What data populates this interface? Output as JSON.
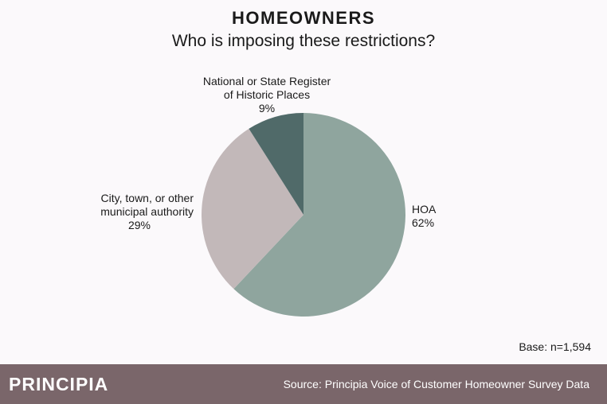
{
  "header": {
    "title": "HOMEOWNERS",
    "subtitle": "Who is imposing these restrictions?"
  },
  "chart_data": {
    "type": "pie",
    "title": "HOMEOWNERS",
    "subtitle": "Who is imposing these restrictions?",
    "start_angle_deg": 0,
    "direction": "clockwise",
    "slices": [
      {
        "label_lines": [
          "HOA"
        ],
        "value": 62,
        "value_label": "62%",
        "color": "#8fa59e"
      },
      {
        "label_lines": [
          "City, town, or other",
          "municipal authority"
        ],
        "value": 29,
        "value_label": "29%",
        "color": "#c2b8b9"
      },
      {
        "label_lines": [
          "National or State Register",
          "of Historic Places"
        ],
        "value": 9,
        "value_label": "9%",
        "color": "#506a69"
      }
    ]
  },
  "base_note": "Base: n=1,594",
  "footer": {
    "logo": "PRINCIPIA",
    "source": "Source: Principia Voice of Customer Homeowner Survey Data",
    "background": "#7a666a"
  }
}
